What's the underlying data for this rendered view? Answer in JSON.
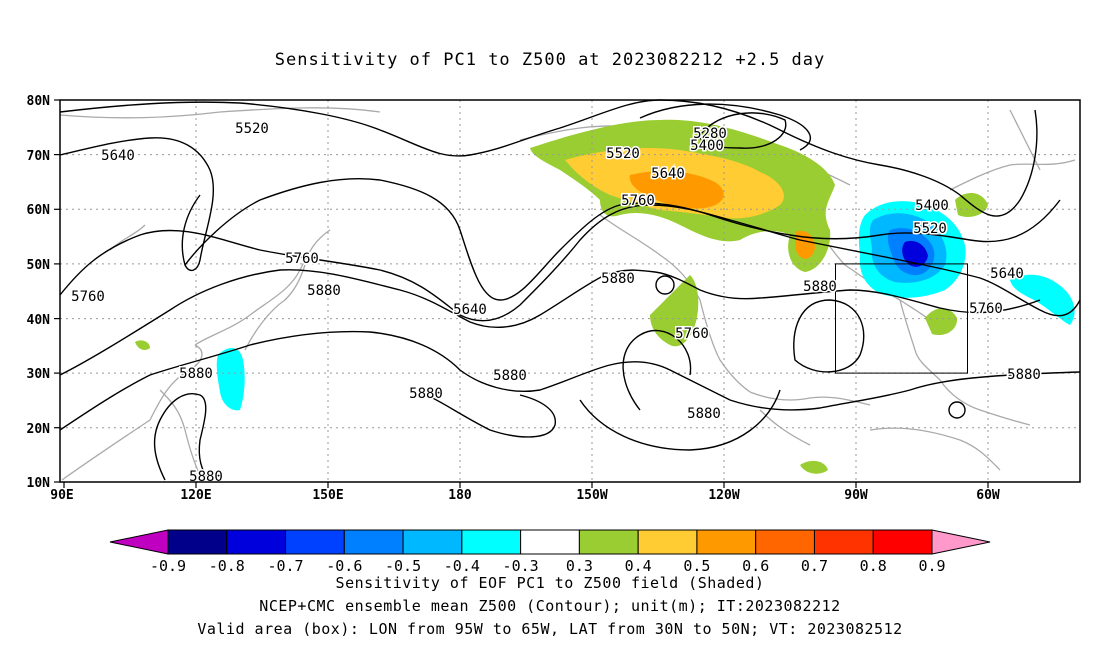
{
  "title": "Sensitivity of PC1 to Z500 at 2023082212 +2.5 day",
  "lat_labels": [
    "80N",
    "70N",
    "60N",
    "50N",
    "40N",
    "30N",
    "20N",
    "10N"
  ],
  "lon_labels": [
    "90E",
    "120E",
    "150E",
    "180",
    "150W",
    "120W",
    "90W",
    "60W"
  ],
  "contour_labels": [
    "5520",
    "5640",
    "5760",
    "5880",
    "5280",
    "5400"
  ],
  "colorbar": {
    "labels": [
      "-0.9",
      "-0.8",
      "-0.7",
      "-0.6",
      "-0.5",
      "-0.4",
      "-0.3",
      "0.3",
      "0.4",
      "0.5",
      "0.6",
      "0.7",
      "0.8",
      "0.9"
    ],
    "colors": [
      "#c000c0",
      "#00008b",
      "#0000dd",
      "#0040ff",
      "#0080ff",
      "#00b8ff",
      "#00ffff",
      "#ffffff",
      "#9acd32",
      "#ffcc33",
      "#ff9900",
      "#ff6600",
      "#ff3300",
      "#ff0000",
      "#ff99cc"
    ]
  },
  "valid_box": {
    "lon": [
      -95,
      -65
    ],
    "lat": [
      30,
      50
    ]
  },
  "captions": [
    "Sensitivity of EOF PC1 to Z500 field (Shaded)",
    "NCEP+CMC ensemble mean Z500 (Contour); unit(m); IT:2023082212",
    "Valid area (box): LON from 95W to 65W, LAT from 30N to 50N; VT: 2023082512"
  ]
}
